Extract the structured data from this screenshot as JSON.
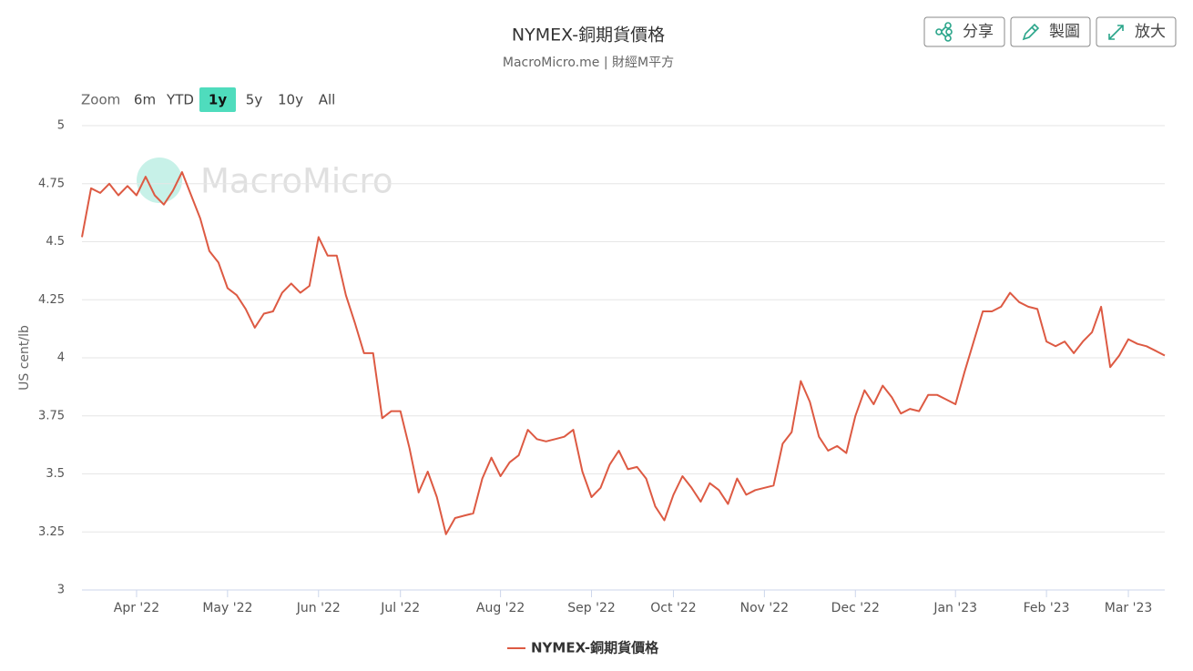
{
  "toolbar": {
    "buttons": [
      "分享",
      "製圖",
      "放大"
    ]
  },
  "zoom": {
    "label": "Zoom",
    "options": [
      "6m",
      "YTD",
      "1y",
      "5y",
      "10y",
      "All"
    ],
    "active": 2
  },
  "watermark": "MacroMicro",
  "chart_data": {
    "type": "line",
    "title": "NYMEX-銅期貨價格",
    "subtitle": "MacroMicro.me | 財經M平方",
    "y_label": "US cent/lb",
    "ylim": [
      3,
      5
    ],
    "yticks": [
      3,
      3.25,
      3.5,
      3.75,
      4,
      4.25,
      4.5,
      4.75,
      5
    ],
    "grid": true,
    "legend": "bottom",
    "categories": [
      null,
      null,
      null,
      null,
      null,
      null,
      "Apr '22",
      null,
      null,
      null,
      null,
      null,
      null,
      null,
      null,
      null,
      "May '22",
      null,
      null,
      null,
      null,
      null,
      null,
      null,
      null,
      null,
      "Jun '22",
      null,
      null,
      null,
      null,
      null,
      null,
      null,
      null,
      "Jul '22",
      null,
      null,
      null,
      null,
      null,
      null,
      null,
      null,
      null,
      null,
      "Aug '22",
      null,
      null,
      null,
      null,
      null,
      null,
      null,
      null,
      null,
      "Sep '22",
      null,
      null,
      null,
      null,
      null,
      null,
      null,
      null,
      "Oct '22",
      null,
      null,
      null,
      null,
      null,
      null,
      null,
      null,
      null,
      "Nov '22",
      null,
      null,
      null,
      null,
      null,
      null,
      null,
      null,
      null,
      "Dec '22",
      null,
      null,
      null,
      null,
      null,
      null,
      null,
      null,
      null,
      null,
      "Jan '23",
      null,
      null,
      null,
      null,
      null,
      null,
      null,
      null,
      null,
      "Feb '23",
      null,
      null,
      null,
      null,
      null,
      null,
      null,
      null,
      "Mar '23",
      null,
      null,
      null,
      null
    ],
    "series": [
      {
        "name": "NYMEX-銅期貨價格",
        "color": "#dd5a43",
        "values": [
          4.52,
          4.73,
          4.71,
          4.75,
          4.7,
          4.74,
          4.7,
          4.78,
          4.7,
          4.66,
          4.72,
          4.8,
          4.7,
          4.6,
          4.46,
          4.41,
          4.3,
          4.27,
          4.21,
          4.13,
          4.19,
          4.2,
          4.28,
          4.32,
          4.28,
          4.31,
          4.52,
          4.44,
          4.44,
          4.27,
          4.15,
          4.02,
          4.02,
          3.74,
          3.77,
          3.77,
          3.61,
          3.42,
          3.51,
          3.4,
          3.24,
          3.31,
          3.32,
          3.33,
          3.48,
          3.57,
          3.49,
          3.55,
          3.58,
          3.69,
          3.65,
          3.64,
          3.65,
          3.66,
          3.69,
          3.51,
          3.4,
          3.44,
          3.54,
          3.6,
          3.52,
          3.53,
          3.48,
          3.36,
          3.3,
          3.41,
          3.49,
          3.44,
          3.38,
          3.46,
          3.43,
          3.37,
          3.48,
          3.41,
          3.43,
          3.44,
          3.45,
          3.63,
          3.68,
          3.9,
          3.81,
          3.66,
          3.6,
          3.62,
          3.59,
          3.75,
          3.86,
          3.8,
          3.88,
          3.83,
          3.76,
          3.78,
          3.77,
          3.84,
          3.84,
          3.82,
          3.8,
          3.94,
          4.07,
          4.2,
          4.2,
          4.22,
          4.28,
          4.24,
          4.22,
          4.21,
          4.07,
          4.05,
          4.07,
          4.02,
          4.07,
          4.11,
          4.22,
          3.96,
          4.01,
          4.08,
          4.06,
          4.05,
          4.03,
          4.01
        ]
      }
    ]
  }
}
